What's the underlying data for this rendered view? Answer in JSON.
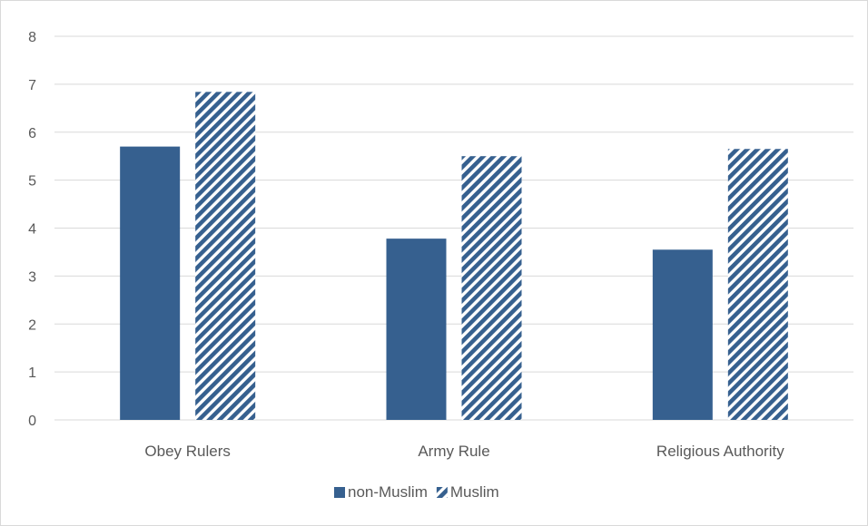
{
  "chart_data": {
    "type": "bar",
    "categories": [
      "Obey Rulers",
      "Army Rule",
      "Religious Authority"
    ],
    "series": [
      {
        "name": "non-Muslim",
        "values": [
          5.7,
          3.78,
          3.55
        ],
        "color": "#36608F",
        "pattern": "solid"
      },
      {
        "name": "Muslim",
        "values": [
          6.84,
          5.5,
          5.65
        ],
        "color": "#36608F",
        "pattern": "diagonal-stripes"
      }
    ],
    "ylim": [
      0,
      8
    ],
    "yticks": [
      "0",
      "1",
      "2",
      "3",
      "4",
      "5",
      "6",
      "7",
      "8"
    ],
    "grid": true,
    "legend_position": "bottom",
    "title": "",
    "xlabel": "",
    "ylabel": ""
  }
}
